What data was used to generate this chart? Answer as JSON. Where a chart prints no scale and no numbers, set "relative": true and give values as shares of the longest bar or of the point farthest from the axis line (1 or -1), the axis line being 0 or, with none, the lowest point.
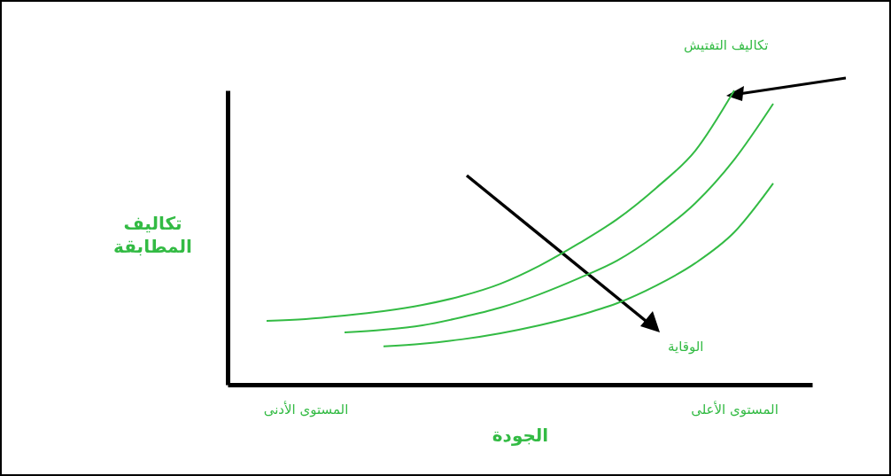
{
  "chart_data": {
    "type": "line",
    "relative": true,
    "xlabel": "الجودة",
    "ylabel": "تكاليف المطابقة",
    "categories": [
      null,
      null,
      "المستوى الأدنى",
      null,
      null,
      null,
      null,
      null,
      null,
      null,
      null,
      null,
      null,
      "المستوى الأعلى",
      null,
      null
    ],
    "series": [
      {
        "color": "#33bb44",
        "values": [
          null,
          0.217,
          0.223,
          0.235,
          0.25,
          0.271,
          0.301,
          0.343,
          0.404,
          0.479,
          0.563,
          0.669,
          0.795,
          1,
          null,
          null
        ]
      },
      {
        "color": "#33bb44",
        "values": [
          null,
          null,
          null,
          0.178,
          0.187,
          0.202,
          0.229,
          0.262,
          0.307,
          0.361,
          0.422,
          0.509,
          0.617,
          0.765,
          0.955,
          null
        ]
      },
      {
        "color": "#33bb44",
        "values": [
          null,
          null,
          null,
          null,
          0.13,
          0.139,
          0.154,
          0.175,
          0.202,
          0.235,
          0.277,
          0.337,
          0.413,
          0.518,
          0.684,
          null
        ]
      }
    ],
    "annotations": [
      "تكاليف التفتيش",
      "الوقاية"
    ]
  }
}
